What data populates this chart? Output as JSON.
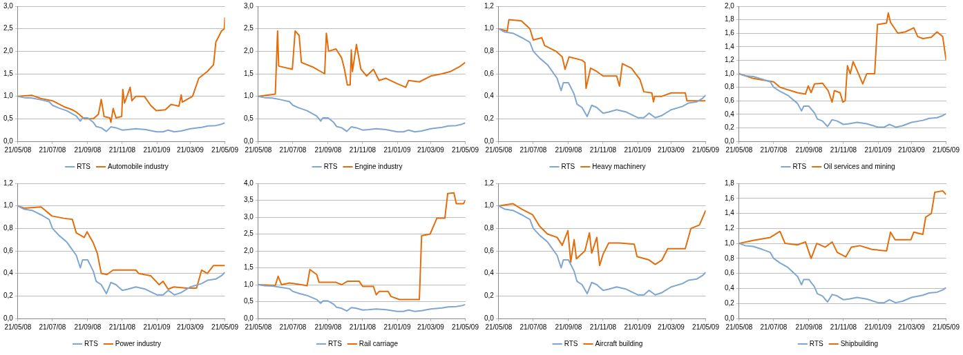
{
  "chart_data": [
    {
      "type": "line",
      "grid": "y",
      "legend": "bottom",
      "marker": "none",
      "xlim": [
        "2008-05-21",
        "2009-05-21"
      ],
      "xticks": [
        {
          "value": "2008-05-21",
          "label": "21/05/08"
        },
        {
          "value": "2008-07-21",
          "label": "21/07/08"
        },
        {
          "value": "2008-09-21",
          "label": "21/09/08"
        },
        {
          "value": "2008-11-21",
          "label": "21/11/08"
        },
        {
          "value": "2009-01-21",
          "label": "21/01/09"
        },
        {
          "value": "2009-03-21",
          "label": "21/03/09"
        },
        {
          "value": "2009-05-21",
          "label": "21/05/09"
        }
      ],
      "ylim": [
        0,
        3
      ],
      "yticks": [
        {
          "value": 0,
          "label": "0,0"
        },
        {
          "value": 0.5,
          "label": "0,5"
        },
        {
          "value": 1,
          "label": "1,0"
        },
        {
          "value": 1.5,
          "label": "1,5"
        },
        {
          "value": 2,
          "label": "2,0"
        },
        {
          "value": 2.5,
          "label": "2,5"
        },
        {
          "value": 3,
          "label": "3,0"
        }
      ],
      "series": [
        {
          "name": "RTS",
          "color": "#7ea6d2",
          "x": [
            "2008-05-21",
            "2008-06-01",
            "2008-06-15",
            "2008-07-01",
            "2008-07-15",
            "2008-07-21",
            "2008-08-01",
            "2008-08-15",
            "2008-09-01",
            "2008-09-08",
            "2008-09-12",
            "2008-09-21",
            "2008-10-01",
            "2008-10-06",
            "2008-10-15",
            "2008-10-24",
            "2008-11-01",
            "2008-11-10",
            "2008-11-21",
            "2008-12-01",
            "2008-12-15",
            "2009-01-01",
            "2009-01-21",
            "2009-02-01",
            "2009-02-10",
            "2009-02-21",
            "2009-03-05",
            "2009-03-21",
            "2009-04-10",
            "2009-04-21",
            "2009-05-05",
            "2009-05-15",
            "2009-05-21"
          ],
          "values": [
            1.0,
            0.97,
            0.96,
            0.92,
            0.88,
            0.8,
            0.74,
            0.68,
            0.56,
            0.45,
            0.52,
            0.52,
            0.42,
            0.33,
            0.3,
            0.22,
            0.32,
            0.3,
            0.25,
            0.26,
            0.28,
            0.26,
            0.21,
            0.21,
            0.25,
            0.21,
            0.23,
            0.28,
            0.31,
            0.34,
            0.35,
            0.38,
            0.41
          ]
        },
        {
          "name": "Automobile industry",
          "color": "#e46c0a",
          "x": [
            "2008-05-21",
            "2008-06-15",
            "2008-07-01",
            "2008-07-21",
            "2008-08-10",
            "2008-08-25",
            "2008-09-01",
            "2008-09-15",
            "2008-10-01",
            "2008-10-10",
            "2008-10-15",
            "2008-10-20",
            "2008-10-30",
            "2008-11-01",
            "2008-11-05",
            "2008-11-10",
            "2008-11-20",
            "2008-11-22",
            "2008-11-25",
            "2008-12-05",
            "2008-12-08",
            "2008-12-15",
            "2008-12-30",
            "2009-01-10",
            "2009-01-20",
            "2009-02-05",
            "2009-02-15",
            "2009-03-01",
            "2009-03-05",
            "2009-03-07",
            "2009-03-25",
            "2009-04-05",
            "2009-04-20",
            "2009-05-01",
            "2009-05-05",
            "2009-05-15",
            "2009-05-20",
            "2009-05-21"
          ],
          "values": [
            1.0,
            1.02,
            0.95,
            0.9,
            0.77,
            0.7,
            0.65,
            0.5,
            0.5,
            0.6,
            0.93,
            0.55,
            0.52,
            0.42,
            0.73,
            0.52,
            0.55,
            1.15,
            0.85,
            1.2,
            0.9,
            1.0,
            1.0,
            0.8,
            0.68,
            0.7,
            0.82,
            0.78,
            1.03,
            0.87,
            1.0,
            1.4,
            1.55,
            1.7,
            2.2,
            2.45,
            2.5,
            2.75
          ]
        }
      ]
    },
    {
      "type": "line",
      "grid": "y",
      "legend": "bottom",
      "marker": "none",
      "xlim": [
        "2008-05-21",
        "2009-05-21"
      ],
      "xticks": [
        {
          "value": "2008-05-21",
          "label": "21/05/08"
        },
        {
          "value": "2008-07-21",
          "label": "21/07/08"
        },
        {
          "value": "2008-09-21",
          "label": "21/09/08"
        },
        {
          "value": "2008-11-21",
          "label": "21/11/08"
        },
        {
          "value": "2009-01-21",
          "label": "21/01/09"
        },
        {
          "value": "2009-03-21",
          "label": "21/03/09"
        },
        {
          "value": "2009-05-21",
          "label": "21/05/09"
        }
      ],
      "ylim": [
        0,
        3
      ],
      "yticks": [
        {
          "value": 0,
          "label": "0,0"
        },
        {
          "value": 0.5,
          "label": "0,5"
        },
        {
          "value": 1,
          "label": "1,0"
        },
        {
          "value": 1.5,
          "label": "1,5"
        },
        {
          "value": 2,
          "label": "2,0"
        },
        {
          "value": 2.5,
          "label": "2,5"
        },
        {
          "value": 3,
          "label": "3,0"
        }
      ],
      "series": [
        {
          "name": "RTS",
          "color": "#7ea6d2",
          "x": [
            "2008-05-21",
            "2008-06-01",
            "2008-06-15",
            "2008-07-01",
            "2008-07-15",
            "2008-07-21",
            "2008-08-01",
            "2008-08-15",
            "2008-09-01",
            "2008-09-08",
            "2008-09-12",
            "2008-09-21",
            "2008-10-01",
            "2008-10-06",
            "2008-10-15",
            "2008-10-24",
            "2008-11-01",
            "2008-11-10",
            "2008-11-21",
            "2008-12-01",
            "2008-12-15",
            "2009-01-01",
            "2009-01-21",
            "2009-02-01",
            "2009-02-10",
            "2009-02-21",
            "2009-03-05",
            "2009-03-21",
            "2009-04-10",
            "2009-04-21",
            "2009-05-05",
            "2009-05-15",
            "2009-05-21"
          ],
          "values": [
            1.0,
            0.97,
            0.96,
            0.92,
            0.88,
            0.8,
            0.74,
            0.68,
            0.56,
            0.45,
            0.52,
            0.52,
            0.42,
            0.33,
            0.3,
            0.22,
            0.32,
            0.3,
            0.25,
            0.26,
            0.28,
            0.26,
            0.21,
            0.21,
            0.25,
            0.21,
            0.23,
            0.28,
            0.31,
            0.34,
            0.35,
            0.38,
            0.41
          ]
        },
        {
          "name": "Engine industry",
          "color": "#e46c0a",
          "x": [
            "2008-05-21",
            "2008-06-20",
            "2008-06-24",
            "2008-06-26",
            "2008-07-20",
            "2008-07-25",
            "2008-08-01",
            "2008-08-05",
            "2008-08-25",
            "2008-09-15",
            "2008-09-18",
            "2008-09-22",
            "2008-10-05",
            "2008-10-15",
            "2008-10-20",
            "2008-10-25",
            "2008-10-30",
            "2008-11-01",
            "2008-11-03",
            "2008-11-10",
            "2008-11-18",
            "2008-11-28",
            "2008-12-10",
            "2008-12-20",
            "2009-01-01",
            "2009-01-21",
            "2009-02-05",
            "2009-02-10",
            "2009-03-01",
            "2009-03-21",
            "2009-04-10",
            "2009-04-25",
            "2009-05-10",
            "2009-05-21"
          ],
          "values": [
            1.0,
            1.05,
            2.45,
            1.67,
            1.6,
            2.45,
            2.35,
            1.75,
            1.65,
            1.5,
            2.4,
            2.0,
            2.05,
            1.85,
            1.6,
            1.25,
            1.25,
            2.03,
            1.55,
            2.15,
            1.6,
            1.45,
            1.6,
            1.35,
            1.4,
            1.28,
            1.2,
            1.35,
            1.32,
            1.45,
            1.5,
            1.55,
            1.65,
            1.75
          ]
        }
      ]
    },
    {
      "type": "line",
      "grid": "y",
      "legend": "bottom",
      "marker": "none",
      "xlim": [
        "2008-05-21",
        "2009-05-21"
      ],
      "xticks": [
        {
          "value": "2008-05-21",
          "label": "21/05/08"
        },
        {
          "value": "2008-07-21",
          "label": "21/07/08"
        },
        {
          "value": "2008-09-21",
          "label": "21/09/08"
        },
        {
          "value": "2008-11-21",
          "label": "21/11/08"
        },
        {
          "value": "2009-01-21",
          "label": "21/01/09"
        },
        {
          "value": "2009-03-21",
          "label": "21/03/09"
        },
        {
          "value": "2009-05-21",
          "label": "21/05/09"
        }
      ],
      "ylim": [
        0,
        1.2
      ],
      "yticks": [
        {
          "value": 0,
          "label": "0,0"
        },
        {
          "value": 0.2,
          "label": "0,2"
        },
        {
          "value": 0.4,
          "label": "0,4"
        },
        {
          "value": 0.6,
          "label": "0,6"
        },
        {
          "value": 0.8,
          "label": "0,8"
        },
        {
          "value": 1,
          "label": "1,0"
        },
        {
          "value": 1.2,
          "label": "1,2"
        }
      ],
      "series": [
        {
          "name": "RTS",
          "color": "#7ea6d2",
          "x": [
            "2008-05-21",
            "2008-06-01",
            "2008-06-15",
            "2008-07-01",
            "2008-07-15",
            "2008-07-21",
            "2008-08-01",
            "2008-08-15",
            "2008-09-01",
            "2008-09-08",
            "2008-09-12",
            "2008-09-21",
            "2008-10-01",
            "2008-10-06",
            "2008-10-15",
            "2008-10-24",
            "2008-11-01",
            "2008-11-10",
            "2008-11-21",
            "2008-12-01",
            "2008-12-15",
            "2009-01-01",
            "2009-01-21",
            "2009-02-01",
            "2009-02-10",
            "2009-02-21",
            "2009-03-05",
            "2009-03-21",
            "2009-04-10",
            "2009-04-21",
            "2009-05-05",
            "2009-05-15",
            "2009-05-21"
          ],
          "values": [
            1.0,
            0.97,
            0.96,
            0.92,
            0.88,
            0.8,
            0.74,
            0.68,
            0.56,
            0.45,
            0.52,
            0.52,
            0.42,
            0.33,
            0.3,
            0.22,
            0.32,
            0.3,
            0.25,
            0.26,
            0.28,
            0.26,
            0.21,
            0.21,
            0.25,
            0.21,
            0.23,
            0.28,
            0.31,
            0.34,
            0.35,
            0.38,
            0.41
          ]
        },
        {
          "name": "Heavy machinery",
          "color": "#e46c0a",
          "x": [
            "2008-05-21",
            "2008-06-05",
            "2008-06-08",
            "2008-06-30",
            "2008-07-15",
            "2008-07-21",
            "2008-08-05",
            "2008-08-10",
            "2008-08-30",
            "2008-09-10",
            "2008-09-15",
            "2008-09-22",
            "2008-10-15",
            "2008-10-20",
            "2008-10-22",
            "2008-10-30",
            "2008-11-10",
            "2008-11-21",
            "2008-12-15",
            "2008-12-20",
            "2008-12-25",
            "2009-01-10",
            "2009-01-25",
            "2009-02-01",
            "2009-02-15",
            "2009-02-18",
            "2009-02-20",
            "2009-03-05",
            "2009-03-21",
            "2009-04-15",
            "2009-04-18",
            "2009-05-10",
            "2009-05-21"
          ],
          "values": [
            1.0,
            0.98,
            1.08,
            1.07,
            1.0,
            0.9,
            0.92,
            0.85,
            0.8,
            0.75,
            0.64,
            0.75,
            0.72,
            0.7,
            0.47,
            0.65,
            0.62,
            0.58,
            0.58,
            0.49,
            0.69,
            0.65,
            0.55,
            0.44,
            0.43,
            0.35,
            0.4,
            0.4,
            0.43,
            0.43,
            0.36,
            0.36,
            0.36
          ]
        }
      ]
    },
    {
      "type": "line",
      "grid": "y",
      "legend": "bottom",
      "marker": "none",
      "xlim": [
        "2008-05-21",
        "2009-05-21"
      ],
      "xticks": [
        {
          "value": "2008-05-21",
          "label": "21/05/08"
        },
        {
          "value": "2008-07-21",
          "label": "21/07/08"
        },
        {
          "value": "2008-09-21",
          "label": "21/09/08"
        },
        {
          "value": "2008-11-21",
          "label": "21/11/08"
        },
        {
          "value": "2009-01-21",
          "label": "21/01/09"
        },
        {
          "value": "2009-03-21",
          "label": "21/03/09"
        },
        {
          "value": "2009-05-21",
          "label": "21/05/09"
        }
      ],
      "ylim": [
        0,
        2
      ],
      "yticks": [
        {
          "value": 0,
          "label": "0,0"
        },
        {
          "value": 0.2,
          "label": "0,2"
        },
        {
          "value": 0.4,
          "label": "0,4"
        },
        {
          "value": 0.6,
          "label": "0,6"
        },
        {
          "value": 0.8,
          "label": "0,8"
        },
        {
          "value": 1,
          "label": "1,0"
        },
        {
          "value": 1.2,
          "label": "1,2"
        },
        {
          "value": 1.4,
          "label": "1,4"
        },
        {
          "value": 1.6,
          "label": "1,6"
        },
        {
          "value": 1.8,
          "label": "1,8"
        },
        {
          "value": 2,
          "label": "2,0"
        }
      ],
      "series": [
        {
          "name": "RTS",
          "color": "#7ea6d2",
          "x": [
            "2008-05-21",
            "2008-06-01",
            "2008-06-15",
            "2008-07-01",
            "2008-07-15",
            "2008-07-21",
            "2008-08-01",
            "2008-08-15",
            "2008-09-01",
            "2008-09-08",
            "2008-09-12",
            "2008-09-21",
            "2008-10-01",
            "2008-10-06",
            "2008-10-15",
            "2008-10-24",
            "2008-11-01",
            "2008-11-10",
            "2008-11-21",
            "2008-12-01",
            "2008-12-15",
            "2009-01-01",
            "2009-01-21",
            "2009-02-01",
            "2009-02-10",
            "2009-02-21",
            "2009-03-05",
            "2009-03-21",
            "2009-04-10",
            "2009-04-21",
            "2009-05-05",
            "2009-05-15",
            "2009-05-21"
          ],
          "values": [
            1.0,
            0.97,
            0.96,
            0.92,
            0.88,
            0.8,
            0.74,
            0.68,
            0.56,
            0.45,
            0.52,
            0.52,
            0.42,
            0.33,
            0.3,
            0.22,
            0.32,
            0.3,
            0.25,
            0.26,
            0.28,
            0.26,
            0.21,
            0.21,
            0.25,
            0.21,
            0.23,
            0.28,
            0.31,
            0.34,
            0.35,
            0.38,
            0.41
          ]
        },
        {
          "name": "Oil services and mining",
          "color": "#e46c0a",
          "x": [
            "2008-05-21",
            "2008-06-15",
            "2008-07-21",
            "2008-08-01",
            "2008-09-01",
            "2008-09-15",
            "2008-09-20",
            "2008-09-25",
            "2008-10-01",
            "2008-10-15",
            "2008-10-25",
            "2008-11-01",
            "2008-11-05",
            "2008-11-15",
            "2008-11-20",
            "2008-11-24",
            "2008-11-28",
            "2008-12-03",
            "2008-12-08",
            "2008-12-15",
            "2008-12-25",
            "2009-01-01",
            "2009-01-15",
            "2009-01-20",
            "2009-02-05",
            "2009-02-08",
            "2009-02-12",
            "2009-02-25",
            "2009-03-10",
            "2009-03-25",
            "2009-04-01",
            "2009-04-10",
            "2009-04-25",
            "2009-05-05",
            "2009-05-15",
            "2009-05-21"
          ],
          "values": [
            1.0,
            0.93,
            0.88,
            0.8,
            0.72,
            0.7,
            0.82,
            0.72,
            0.85,
            0.86,
            0.75,
            0.58,
            0.75,
            0.72,
            0.58,
            0.6,
            1.12,
            1.0,
            1.18,
            1.05,
            0.85,
            1.0,
            1.0,
            1.73,
            1.75,
            1.9,
            1.76,
            1.6,
            1.62,
            1.68,
            1.55,
            1.52,
            1.54,
            1.62,
            1.55,
            1.2
          ]
        }
      ]
    },
    {
      "type": "line",
      "grid": "y",
      "legend": "bottom",
      "marker": "none",
      "xlim": [
        "2008-05-21",
        "2009-05-21"
      ],
      "xticks": [
        {
          "value": "2008-05-21",
          "label": "21/05/08"
        },
        {
          "value": "2008-07-21",
          "label": "21/07/08"
        },
        {
          "value": "2008-09-21",
          "label": "21/09/08"
        },
        {
          "value": "2008-11-21",
          "label": "21/11/08"
        },
        {
          "value": "2009-01-21",
          "label": "21/01/09"
        },
        {
          "value": "2009-03-21",
          "label": "21/03/09"
        },
        {
          "value": "2009-05-21",
          "label": "21/05/09"
        }
      ],
      "ylim": [
        0,
        1.2
      ],
      "yticks": [
        {
          "value": 0,
          "label": "0,0"
        },
        {
          "value": 0.2,
          "label": "0,2"
        },
        {
          "value": 0.4,
          "label": "0,4"
        },
        {
          "value": 0.6,
          "label": "0,6"
        },
        {
          "value": 0.8,
          "label": "0,8"
        },
        {
          "value": 1,
          "label": "1,0"
        },
        {
          "value": 1.2,
          "label": "1,2"
        }
      ],
      "series": [
        {
          "name": "RTS",
          "color": "#7ea6d2",
          "x": [
            "2008-05-21",
            "2008-06-01",
            "2008-06-15",
            "2008-07-01",
            "2008-07-15",
            "2008-07-21",
            "2008-08-01",
            "2008-08-15",
            "2008-09-01",
            "2008-09-08",
            "2008-09-12",
            "2008-09-21",
            "2008-10-01",
            "2008-10-06",
            "2008-10-15",
            "2008-10-24",
            "2008-11-01",
            "2008-11-10",
            "2008-11-21",
            "2008-12-01",
            "2008-12-15",
            "2009-01-01",
            "2009-01-21",
            "2009-02-01",
            "2009-02-10",
            "2009-02-21",
            "2009-03-05",
            "2009-03-21",
            "2009-04-10",
            "2009-04-21",
            "2009-05-05",
            "2009-05-15",
            "2009-05-21"
          ],
          "values": [
            1.0,
            0.97,
            0.96,
            0.92,
            0.88,
            0.8,
            0.74,
            0.68,
            0.56,
            0.45,
            0.52,
            0.52,
            0.42,
            0.33,
            0.3,
            0.22,
            0.32,
            0.3,
            0.25,
            0.26,
            0.28,
            0.26,
            0.21,
            0.21,
            0.25,
            0.21,
            0.23,
            0.28,
            0.31,
            0.34,
            0.35,
            0.38,
            0.41
          ]
        },
        {
          "name": "Power industry",
          "color": "#e46c0a",
          "x": [
            "2008-05-21",
            "2008-06-01",
            "2008-07-01",
            "2008-07-20",
            "2008-08-10",
            "2008-08-25",
            "2008-09-01",
            "2008-09-15",
            "2008-09-20",
            "2008-10-01",
            "2008-10-08",
            "2008-10-15",
            "2008-10-25",
            "2008-11-05",
            "2008-12-15",
            "2008-12-20",
            "2009-01-10",
            "2009-01-25",
            "2009-02-01",
            "2009-02-10",
            "2009-02-20",
            "2009-03-15",
            "2009-04-01",
            "2009-04-10",
            "2009-04-20",
            "2009-05-01",
            "2009-05-21"
          ],
          "values": [
            1.0,
            0.98,
            0.99,
            0.91,
            0.89,
            0.88,
            0.76,
            0.72,
            0.77,
            0.67,
            0.58,
            0.4,
            0.39,
            0.43,
            0.43,
            0.4,
            0.38,
            0.3,
            0.33,
            0.26,
            0.28,
            0.27,
            0.27,
            0.43,
            0.4,
            0.47,
            0.47
          ]
        }
      ]
    },
    {
      "type": "line",
      "grid": "y",
      "legend": "bottom",
      "marker": "none",
      "xlim": [
        "2008-05-21",
        "2009-05-21"
      ],
      "xticks": [
        {
          "value": "2008-05-21",
          "label": "21/05/08"
        },
        {
          "value": "2008-07-21",
          "label": "21/07/08"
        },
        {
          "value": "2008-09-21",
          "label": "21/09/08"
        },
        {
          "value": "2008-11-21",
          "label": "21/11/08"
        },
        {
          "value": "2009-01-21",
          "label": "21/01/09"
        },
        {
          "value": "2009-03-21",
          "label": "21/03/09"
        },
        {
          "value": "2009-05-21",
          "label": "21/05/09"
        }
      ],
      "ylim": [
        0,
        4
      ],
      "yticks": [
        {
          "value": 0,
          "label": "0,0"
        },
        {
          "value": 0.5,
          "label": "0,5"
        },
        {
          "value": 1,
          "label": "1,0"
        },
        {
          "value": 1.5,
          "label": "1,5"
        },
        {
          "value": 2,
          "label": "2,0"
        },
        {
          "value": 2.5,
          "label": "2,5"
        },
        {
          "value": 3,
          "label": "3,0"
        },
        {
          "value": 3.5,
          "label": "3,5"
        },
        {
          "value": 4,
          "label": "4,0"
        }
      ],
      "series": [
        {
          "name": "RTS",
          "color": "#7ea6d2",
          "x": [
            "2008-05-21",
            "2008-06-01",
            "2008-06-15",
            "2008-07-01",
            "2008-07-15",
            "2008-07-21",
            "2008-08-01",
            "2008-08-15",
            "2008-09-01",
            "2008-09-08",
            "2008-09-12",
            "2008-09-21",
            "2008-10-01",
            "2008-10-06",
            "2008-10-15",
            "2008-10-24",
            "2008-11-01",
            "2008-11-10",
            "2008-11-21",
            "2008-12-01",
            "2008-12-15",
            "2009-01-01",
            "2009-01-21",
            "2009-02-01",
            "2009-02-10",
            "2009-02-21",
            "2009-03-05",
            "2009-03-21",
            "2009-04-10",
            "2009-04-21",
            "2009-05-05",
            "2009-05-15",
            "2009-05-21"
          ],
          "values": [
            1.0,
            0.97,
            0.96,
            0.92,
            0.88,
            0.8,
            0.74,
            0.68,
            0.56,
            0.45,
            0.52,
            0.52,
            0.42,
            0.33,
            0.3,
            0.22,
            0.32,
            0.3,
            0.25,
            0.26,
            0.28,
            0.26,
            0.21,
            0.21,
            0.25,
            0.21,
            0.23,
            0.28,
            0.31,
            0.34,
            0.35,
            0.38,
            0.41
          ]
        },
        {
          "name": "Rail carriage",
          "color": "#e46c0a",
          "x": [
            "2008-05-21",
            "2008-06-20",
            "2008-06-25",
            "2008-07-01",
            "2008-07-15",
            "2008-08-05",
            "2008-08-15",
            "2008-08-20",
            "2008-09-01",
            "2008-09-05",
            "2008-10-05",
            "2008-10-15",
            "2008-10-25",
            "2008-11-15",
            "2008-11-21",
            "2008-12-10",
            "2008-12-15",
            "2008-12-20",
            "2009-01-05",
            "2009-01-10",
            "2009-01-25",
            "2009-03-01",
            "2009-03-05",
            "2009-03-20",
            "2009-04-01",
            "2009-04-15",
            "2009-04-20",
            "2009-05-01",
            "2009-05-05",
            "2009-05-18",
            "2009-05-21"
          ],
          "values": [
            1.0,
            0.98,
            1.25,
            1.0,
            1.05,
            1.0,
            0.97,
            1.45,
            1.3,
            1.07,
            1.07,
            1.0,
            1.1,
            1.1,
            0.95,
            0.95,
            0.7,
            0.8,
            0.8,
            0.65,
            0.56,
            0.56,
            2.45,
            2.5,
            2.97,
            2.97,
            3.7,
            3.72,
            3.4,
            3.4,
            3.5
          ]
        }
      ]
    },
    {
      "type": "line",
      "grid": "y",
      "legend": "bottom",
      "marker": "none",
      "xlim": [
        "2008-05-21",
        "2009-05-21"
      ],
      "xticks": [
        {
          "value": "2008-05-21",
          "label": "21/05/08"
        },
        {
          "value": "2008-07-21",
          "label": "21/07/08"
        },
        {
          "value": "2008-09-21",
          "label": "21/09/08"
        },
        {
          "value": "2008-11-21",
          "label": "21/11/08"
        },
        {
          "value": "2009-01-21",
          "label": "21/01/09"
        },
        {
          "value": "2009-03-21",
          "label": "21/03/09"
        },
        {
          "value": "2009-05-21",
          "label": "21/05/09"
        }
      ],
      "ylim": [
        0,
        1.2
      ],
      "yticks": [
        {
          "value": 0,
          "label": "0,0"
        },
        {
          "value": 0.2,
          "label": "0,2"
        },
        {
          "value": 0.4,
          "label": "0,4"
        },
        {
          "value": 0.6,
          "label": "0,6"
        },
        {
          "value": 0.8,
          "label": "0,8"
        },
        {
          "value": 1,
          "label": "1,0"
        },
        {
          "value": 1.2,
          "label": "1,2"
        }
      ],
      "series": [
        {
          "name": "RTS",
          "color": "#7ea6d2",
          "x": [
            "2008-05-21",
            "2008-06-01",
            "2008-06-15",
            "2008-07-01",
            "2008-07-15",
            "2008-07-21",
            "2008-08-01",
            "2008-08-15",
            "2008-09-01",
            "2008-09-08",
            "2008-09-12",
            "2008-09-21",
            "2008-10-01",
            "2008-10-06",
            "2008-10-15",
            "2008-10-24",
            "2008-11-01",
            "2008-11-10",
            "2008-11-21",
            "2008-12-01",
            "2008-12-15",
            "2009-01-01",
            "2009-01-21",
            "2009-02-01",
            "2009-02-10",
            "2009-02-21",
            "2009-03-05",
            "2009-03-21",
            "2009-04-10",
            "2009-04-21",
            "2009-05-05",
            "2009-05-15",
            "2009-05-21"
          ],
          "values": [
            1.0,
            0.97,
            0.96,
            0.92,
            0.88,
            0.8,
            0.74,
            0.68,
            0.56,
            0.45,
            0.52,
            0.52,
            0.42,
            0.33,
            0.3,
            0.22,
            0.32,
            0.3,
            0.25,
            0.26,
            0.28,
            0.26,
            0.21,
            0.21,
            0.25,
            0.21,
            0.23,
            0.28,
            0.31,
            0.34,
            0.35,
            0.38,
            0.41
          ]
        },
        {
          "name": "Aircraft building",
          "color": "#e46c0a",
          "x": [
            "2008-05-21",
            "2008-06-15",
            "2008-07-01",
            "2008-07-20",
            "2008-08-01",
            "2008-08-15",
            "2008-09-01",
            "2008-09-10",
            "2008-09-20",
            "2008-09-25",
            "2008-10-01",
            "2008-10-05",
            "2008-10-20",
            "2008-10-28",
            "2008-11-01",
            "2008-11-10",
            "2008-11-15",
            "2008-11-21",
            "2008-12-01",
            "2008-12-20",
            "2009-01-15",
            "2009-01-20",
            "2009-02-10",
            "2009-02-21",
            "2009-03-05",
            "2009-03-15",
            "2009-04-15",
            "2009-04-25",
            "2009-05-10",
            "2009-05-21"
          ],
          "values": [
            1.0,
            1.02,
            0.97,
            0.92,
            0.82,
            0.75,
            0.72,
            0.65,
            0.78,
            0.5,
            0.7,
            0.53,
            0.6,
            0.76,
            0.58,
            0.72,
            0.47,
            0.57,
            0.67,
            0.67,
            0.66,
            0.55,
            0.52,
            0.48,
            0.52,
            0.62,
            0.62,
            0.8,
            0.83,
            0.96
          ]
        }
      ]
    },
    {
      "type": "line",
      "grid": "y",
      "legend": "bottom",
      "marker": "none",
      "xlim": [
        "2008-05-21",
        "2009-05-21"
      ],
      "xticks": [
        {
          "value": "2008-05-21",
          "label": "21/05/08"
        },
        {
          "value": "2008-07-21",
          "label": "21/07/08"
        },
        {
          "value": "2008-09-21",
          "label": "21/09/08"
        },
        {
          "value": "2008-11-21",
          "label": "21/11/08"
        },
        {
          "value": "2009-01-21",
          "label": "21/01/09"
        },
        {
          "value": "2009-03-21",
          "label": "21/03/09"
        },
        {
          "value": "2009-05-21",
          "label": "21/05/09"
        }
      ],
      "ylim": [
        0,
        1.8
      ],
      "yticks": [
        {
          "value": 0,
          "label": "0,0"
        },
        {
          "value": 0.2,
          "label": "0,2"
        },
        {
          "value": 0.4,
          "label": "0,4"
        },
        {
          "value": 0.6,
          "label": "0,6"
        },
        {
          "value": 0.8,
          "label": "0,8"
        },
        {
          "value": 1,
          "label": "1,0"
        },
        {
          "value": 1.2,
          "label": "1,2"
        },
        {
          "value": 1.4,
          "label": "1,4"
        },
        {
          "value": 1.6,
          "label": "1,6"
        },
        {
          "value": 1.8,
          "label": "1,8"
        }
      ],
      "series": [
        {
          "name": "RTS",
          "color": "#7ea6d2",
          "x": [
            "2008-05-21",
            "2008-06-01",
            "2008-06-15",
            "2008-07-01",
            "2008-07-15",
            "2008-07-21",
            "2008-08-01",
            "2008-08-15",
            "2008-09-01",
            "2008-09-08",
            "2008-09-12",
            "2008-09-21",
            "2008-10-01",
            "2008-10-06",
            "2008-10-15",
            "2008-10-24",
            "2008-11-01",
            "2008-11-10",
            "2008-11-21",
            "2008-12-01",
            "2008-12-15",
            "2009-01-01",
            "2009-01-21",
            "2009-02-01",
            "2009-02-10",
            "2009-02-21",
            "2009-03-05",
            "2009-03-21",
            "2009-04-10",
            "2009-04-21",
            "2009-05-05",
            "2009-05-15",
            "2009-05-21"
          ],
          "values": [
            1.0,
            0.97,
            0.96,
            0.92,
            0.88,
            0.8,
            0.74,
            0.68,
            0.56,
            0.45,
            0.52,
            0.52,
            0.42,
            0.33,
            0.3,
            0.22,
            0.32,
            0.3,
            0.25,
            0.26,
            0.28,
            0.26,
            0.21,
            0.21,
            0.25,
            0.21,
            0.23,
            0.28,
            0.31,
            0.34,
            0.35,
            0.38,
            0.41
          ]
        },
        {
          "name": "Shipbuilding",
          "color": "#e46c0a",
          "x": [
            "2008-05-21",
            "2008-06-15",
            "2008-07-15",
            "2008-08-01",
            "2008-08-10",
            "2008-09-01",
            "2008-09-15",
            "2008-09-25",
            "2008-10-05",
            "2008-10-20",
            "2008-11-01",
            "2008-11-10",
            "2008-11-25",
            "2008-12-05",
            "2008-12-20",
            "2009-01-10",
            "2009-02-05",
            "2009-02-12",
            "2009-02-20",
            "2009-03-20",
            "2009-03-25",
            "2009-04-10",
            "2009-04-15",
            "2009-04-25",
            "2009-05-01",
            "2009-05-15",
            "2009-05-21"
          ],
          "values": [
            1.0,
            1.04,
            1.08,
            1.16,
            1.0,
            0.98,
            1.02,
            0.8,
            1.0,
            0.95,
            1.02,
            0.88,
            0.82,
            0.95,
            0.97,
            0.92,
            0.9,
            1.15,
            1.05,
            1.05,
            1.15,
            1.12,
            1.35,
            1.4,
            1.68,
            1.7,
            1.65
          ]
        }
      ]
    }
  ]
}
